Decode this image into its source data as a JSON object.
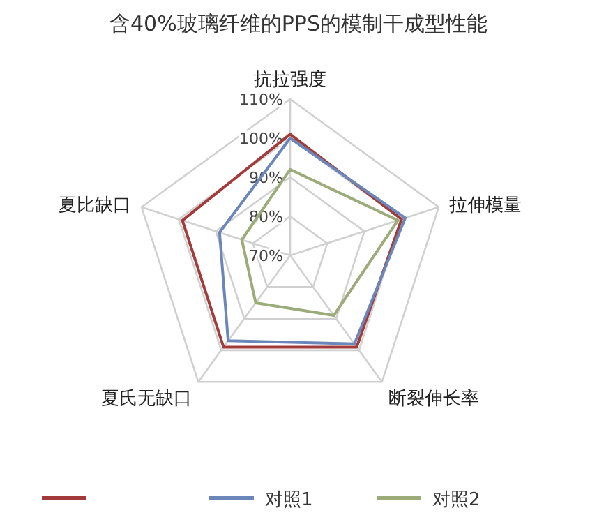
{
  "chart_data": {
    "type": "radar",
    "title": "含40%玻璃纤维的PPS的模制干成型性能",
    "categories": [
      "抗拉强度",
      "拉伸模量",
      "断裂伸长率",
      "夏氏无缺口",
      "夏比缺口"
    ],
    "series": [
      {
        "color": "#a33b3b",
        "values": [
          101,
          100,
          99,
          99,
          99
        ]
      },
      {
        "name": "对照1",
        "color": "#6b86b8",
        "values": [
          100,
          101,
          98,
          97,
          89
        ]
      },
      {
        "name": "对照2",
        "color": "#9bab7a",
        "values": [
          92,
          99,
          89,
          85,
          83
        ]
      }
    ],
    "ylim": [
      70,
      110
    ],
    "yticks": [
      {
        "value": 70,
        "label": "70%"
      },
      {
        "value": 80,
        "label": "80%"
      },
      {
        "value": 90,
        "label": "90%"
      },
      {
        "value": 100,
        "label": "100%"
      },
      {
        "value": 110,
        "label": "110%"
      }
    ],
    "grid": true,
    "legend": "bottom",
    "line_style": "solid",
    "marker": "none"
  }
}
